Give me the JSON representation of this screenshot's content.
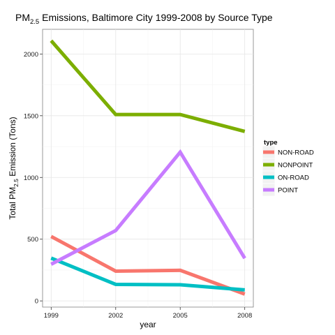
{
  "chart_data": {
    "type": "line",
    "title": {
      "prefix": "PM",
      "sub": "2.5",
      "suffix": " Emissions, Baltimore City 1999-2008 by Source Type"
    },
    "xlabel": "year",
    "ylabel": {
      "prefix": "Total PM",
      "sub": "2.5",
      "suffix": " Emission (Tons)"
    },
    "x": [
      1999,
      2002,
      2005,
      2008
    ],
    "x_tick_labels": [
      "1999",
      "2002",
      "2005",
      "2008"
    ],
    "xlim": [
      1998.6,
      2008.4
    ],
    "ylim": [
      -50,
      2200
    ],
    "y_ticks": [
      0,
      500,
      1000,
      1500,
      2000
    ],
    "y_tick_labels": [
      "0",
      "500",
      "1000",
      "1500",
      "2000"
    ],
    "grid": true,
    "legend": {
      "title": "type",
      "placement": "right"
    },
    "series": [
      {
        "name": "NON-ROAD",
        "color": "#f8766d",
        "values": [
          522,
          241,
          248,
          55
        ]
      },
      {
        "name": "NONPOINT",
        "color": "#7cae00",
        "values": [
          2108,
          1510,
          1510,
          1373
        ]
      },
      {
        "name": "ON-ROAD",
        "color": "#00bfc4",
        "values": [
          347,
          134,
          131,
          89
        ]
      },
      {
        "name": "POINT",
        "color": "#c77cff",
        "values": [
          297,
          570,
          1205,
          345
        ]
      }
    ]
  }
}
